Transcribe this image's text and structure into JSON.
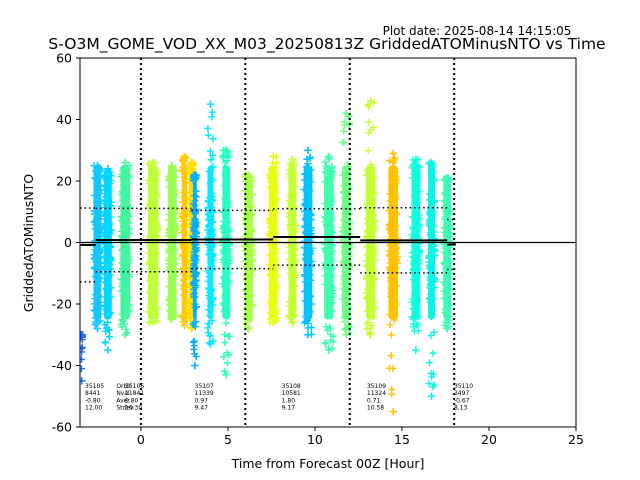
{
  "chart_data": {
    "type": "scatter",
    "title": "S-O3M_GOME_VOD_XX_M03_20250813Z GriddedATOMinusNTO vs Time",
    "plot_date": "Plot date: 2025-08-14 14:15:05",
    "xlabel": "Time from Forecast 00Z [Hour]",
    "ylabel": "GriddedATOMinusNTO",
    "xlim": [
      -3.5,
      25
    ],
    "ylim": [
      -60,
      60
    ],
    "xticks": [
      0,
      5,
      10,
      15,
      20,
      25
    ],
    "yticks": [
      -60,
      -40,
      -20,
      0,
      20,
      40,
      60
    ],
    "zero_line": 0,
    "vertical_dotted_lines": [
      0,
      6,
      12,
      18
    ],
    "grid": false,
    "stats_row_labels": [
      "Orbit",
      "Nval",
      "Aver",
      "Std"
    ],
    "stats_header": {
      "x": -1.7,
      "lines": [
        "Orbit",
        "Nval",
        "Aver",
        "Stdev"
      ]
    },
    "orbit_stats": [
      {
        "x": -3.5,
        "lines": [
          "35105",
          "8441",
          "-0.80",
          "12.00"
        ]
      },
      {
        "x": -1.2,
        "lines": [
          "35106",
          "11841",
          "0.80",
          "10.30"
        ]
      },
      {
        "x": 2.8,
        "lines": [
          "35107",
          "11339",
          "0.97",
          "9.47"
        ]
      },
      {
        "x": 7.8,
        "lines": [
          "35108",
          "10581",
          "1.80",
          "9.17"
        ]
      },
      {
        "x": 12.7,
        "lines": [
          "35109",
          "11324",
          "0.71",
          "10.58"
        ]
      },
      {
        "x": 17.7,
        "lines": [
          "35110",
          "3497",
          "-0.67",
          "8.13"
        ]
      }
    ],
    "orbits": [
      {
        "orbit": "35105",
        "start": -3.5,
        "end": -2.6,
        "mean": -0.8,
        "std": 12.0
      },
      {
        "orbit": "35106",
        "start": -2.6,
        "end": 2.9,
        "mean": 0.8,
        "std": 10.3
      },
      {
        "orbit": "35107",
        "start": 2.9,
        "end": 7.6,
        "mean": 0.97,
        "std": 9.47
      },
      {
        "orbit": "35108",
        "start": 7.6,
        "end": 12.6,
        "mean": 1.8,
        "std": 9.17
      },
      {
        "orbit": "35109",
        "start": 12.6,
        "end": 17.6,
        "mean": 0.71,
        "std": 10.58
      },
      {
        "orbit": "35110",
        "start": 17.6,
        "end": 18.1,
        "mean": -0.67,
        "std": 8.13
      }
    ],
    "clusters": [
      {
        "x": -3.4,
        "w": 0.1,
        "lo": -45,
        "hi": -30,
        "color": "#2070ff"
      },
      {
        "x": -2.5,
        "w": 0.45,
        "lo": -28,
        "hi": 25,
        "color": "#12c8ff"
      },
      {
        "x": -1.9,
        "w": 0.45,
        "lo": -35,
        "hi": 24,
        "color": "#00d8ff"
      },
      {
        "x": -0.9,
        "w": 0.55,
        "lo": -30,
        "hi": 26,
        "color": "#44f5a0"
      },
      {
        "x": 0.7,
        "w": 0.6,
        "lo": -26,
        "hi": 26,
        "color": "#c0ff3a"
      },
      {
        "x": 1.8,
        "w": 0.5,
        "lo": -25,
        "hi": 25,
        "color": "#9cff55"
      },
      {
        "x": 2.5,
        "w": 0.3,
        "lo": -27,
        "hi": 28,
        "color": "#ffc800"
      },
      {
        "x": 2.9,
        "w": 0.28,
        "lo": -28,
        "hi": 26,
        "color": "#ffe000"
      },
      {
        "x": 3.1,
        "w": 0.22,
        "lo": -40,
        "hi": 22,
        "color": "#00b0ff"
      },
      {
        "x": 4.0,
        "w": 0.35,
        "lo": -33,
        "hi": 45,
        "color": "#08e8ff"
      },
      {
        "x": 4.9,
        "w": 0.45,
        "lo": -43,
        "hi": 30,
        "color": "#28ffc0"
      },
      {
        "x": 6.2,
        "w": 0.5,
        "lo": -28,
        "hi": 22,
        "color": "#a8ff48"
      },
      {
        "x": 7.6,
        "w": 0.5,
        "lo": -26,
        "hi": 28,
        "color": "#e8ff10"
      },
      {
        "x": 8.7,
        "w": 0.45,
        "lo": -26,
        "hi": 27,
        "color": "#c8ff30"
      },
      {
        "x": 9.6,
        "w": 0.5,
        "lo": -30,
        "hi": 30,
        "color": "#00c4ff"
      },
      {
        "x": 10.8,
        "w": 0.55,
        "lo": -35,
        "hi": 28,
        "color": "#40ffb0"
      },
      {
        "x": 11.8,
        "w": 0.5,
        "lo": -30,
        "hi": 42,
        "color": "#70ff88"
      },
      {
        "x": 13.2,
        "w": 0.55,
        "lo": -30,
        "hi": 46,
        "color": "#c4ff34"
      },
      {
        "x": 14.5,
        "w": 0.55,
        "lo": -55,
        "hi": 29,
        "color": "#ffc200"
      },
      {
        "x": 15.8,
        "w": 0.5,
        "lo": -35,
        "hi": 27,
        "color": "#10ffe0"
      },
      {
        "x": 16.7,
        "w": 0.4,
        "lo": -50,
        "hi": 26,
        "color": "#0cf4e8"
      },
      {
        "x": 17.6,
        "w": 0.45,
        "lo": -28,
        "hi": 21,
        "color": "#3cffb4"
      }
    ],
    "colors": {
      "mean_line": "#000000",
      "zero_line": "#000000"
    }
  }
}
